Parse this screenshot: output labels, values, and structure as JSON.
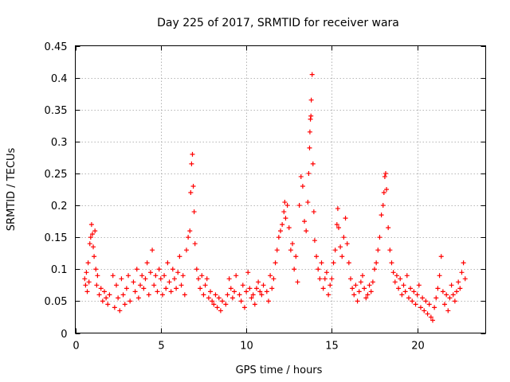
{
  "chart_data": {
    "type": "scatter",
    "title": "Day 225 of 2017, SRMTID for receiver wara",
    "xlabel": "GPS time / hours",
    "ylabel": "SRMTID / TECUs",
    "xlim": [
      0,
      24
    ],
    "ylim": [
      0,
      0.45
    ],
    "xticks": [
      0,
      5,
      10,
      15,
      20
    ],
    "yticks": [
      0,
      0.05,
      0.1,
      0.15,
      0.2,
      0.25,
      0.3,
      0.35,
      0.4,
      0.45
    ],
    "ytick_labels": [
      "0",
      "0.05",
      "0.1",
      "0.15",
      "0.2",
      "0.25",
      "0.3",
      "0.35",
      "0.4",
      "0.45"
    ],
    "grid": true,
    "marker": "+",
    "color": "#ff0000",
    "series": [
      {
        "name": "SRMTID",
        "points": [
          [
            0.55,
            0.085
          ],
          [
            0.6,
            0.075
          ],
          [
            0.65,
            0.095
          ],
          [
            0.7,
            0.065
          ],
          [
            0.75,
            0.11
          ],
          [
            0.8,
            0.08
          ],
          [
            0.85,
            0.14
          ],
          [
            0.9,
            0.15
          ],
          [
            0.95,
            0.17
          ],
          [
            1.0,
            0.155
          ],
          [
            1.05,
            0.135
          ],
          [
            1.1,
            0.12
          ],
          [
            1.15,
            0.16
          ],
          [
            1.2,
            0.1
          ],
          [
            1.25,
            0.075
          ],
          [
            1.3,
            0.09
          ],
          [
            1.4,
            0.06
          ],
          [
            1.5,
            0.07
          ],
          [
            1.6,
            0.05
          ],
          [
            1.7,
            0.065
          ],
          [
            1.8,
            0.055
          ],
          [
            1.9,
            0.045
          ],
          [
            2.0,
            0.06
          ],
          [
            2.2,
            0.09
          ],
          [
            2.3,
            0.04
          ],
          [
            2.4,
            0.075
          ],
          [
            2.5,
            0.055
          ],
          [
            2.6,
            0.035
          ],
          [
            2.7,
            0.085
          ],
          [
            2.8,
            0.06
          ],
          [
            2.9,
            0.045
          ],
          [
            3.0,
            0.07
          ],
          [
            3.1,
            0.09
          ],
          [
            3.2,
            0.05
          ],
          [
            3.4,
            0.08
          ],
          [
            3.5,
            0.065
          ],
          [
            3.6,
            0.1
          ],
          [
            3.7,
            0.055
          ],
          [
            3.8,
            0.075
          ],
          [
            3.9,
            0.09
          ],
          [
            4.0,
            0.07
          ],
          [
            4.1,
            0.085
          ],
          [
            4.2,
            0.11
          ],
          [
            4.3,
            0.06
          ],
          [
            4.4,
            0.095
          ],
          [
            4.5,
            0.13
          ],
          [
            4.6,
            0.075
          ],
          [
            4.7,
            0.09
          ],
          [
            4.8,
            0.065
          ],
          [
            4.9,
            0.1
          ],
          [
            5.0,
            0.085
          ],
          [
            5.1,
            0.06
          ],
          [
            5.2,
            0.09
          ],
          [
            5.3,
            0.07
          ],
          [
            5.4,
            0.11
          ],
          [
            5.5,
            0.08
          ],
          [
            5.6,
            0.065
          ],
          [
            5.7,
            0.1
          ],
          [
            5.8,
            0.085
          ],
          [
            5.9,
            0.07
          ],
          [
            6.0,
            0.095
          ],
          [
            6.1,
            0.12
          ],
          [
            6.2,
            0.075
          ],
          [
            6.3,
            0.09
          ],
          [
            6.4,
            0.06
          ],
          [
            6.5,
            0.13
          ],
          [
            6.6,
            0.15
          ],
          [
            6.7,
            0.16
          ],
          [
            6.75,
            0.22
          ],
          [
            6.8,
            0.265
          ],
          [
            6.85,
            0.28
          ],
          [
            6.9,
            0.23
          ],
          [
            6.95,
            0.19
          ],
          [
            7.0,
            0.14
          ],
          [
            7.1,
            0.1
          ],
          [
            7.2,
            0.085
          ],
          [
            7.3,
            0.07
          ],
          [
            7.4,
            0.09
          ],
          [
            7.5,
            0.06
          ],
          [
            7.6,
            0.075
          ],
          [
            7.7,
            0.085
          ],
          [
            7.8,
            0.055
          ],
          [
            7.9,
            0.065
          ],
          [
            8.0,
            0.05
          ],
          [
            8.1,
            0.045
          ],
          [
            8.2,
            0.06
          ],
          [
            8.3,
            0.04
          ],
          [
            8.4,
            0.055
          ],
          [
            8.5,
            0.035
          ],
          [
            8.6,
            0.05
          ],
          [
            8.8,
            0.045
          ],
          [
            8.9,
            0.06
          ],
          [
            9.0,
            0.085
          ],
          [
            9.1,
            0.07
          ],
          [
            9.2,
            0.055
          ],
          [
            9.3,
            0.065
          ],
          [
            9.4,
            0.09
          ],
          [
            9.6,
            0.06
          ],
          [
            9.7,
            0.05
          ],
          [
            9.8,
            0.075
          ],
          [
            9.9,
            0.04
          ],
          [
            10.0,
            0.065
          ],
          [
            10.1,
            0.095
          ],
          [
            10.2,
            0.07
          ],
          [
            10.3,
            0.055
          ],
          [
            10.4,
            0.06
          ],
          [
            10.5,
            0.045
          ],
          [
            10.6,
            0.07
          ],
          [
            10.7,
            0.08
          ],
          [
            10.8,
            0.065
          ],
          [
            10.9,
            0.06
          ],
          [
            11.0,
            0.075
          ],
          [
            11.2,
            0.065
          ],
          [
            11.3,
            0.05
          ],
          [
            11.4,
            0.09
          ],
          [
            11.5,
            0.07
          ],
          [
            11.6,
            0.085
          ],
          [
            11.7,
            0.11
          ],
          [
            11.8,
            0.13
          ],
          [
            11.9,
            0.15
          ],
          [
            12.0,
            0.16
          ],
          [
            12.1,
            0.17
          ],
          [
            12.2,
            0.19
          ],
          [
            12.25,
            0.205
          ],
          [
            12.3,
            0.18
          ],
          [
            12.4,
            0.2
          ],
          [
            12.5,
            0.165
          ],
          [
            12.6,
            0.13
          ],
          [
            12.7,
            0.14
          ],
          [
            12.8,
            0.1
          ],
          [
            12.9,
            0.12
          ],
          [
            13.0,
            0.08
          ],
          [
            13.1,
            0.2
          ],
          [
            13.2,
            0.245
          ],
          [
            13.3,
            0.23
          ],
          [
            13.4,
            0.175
          ],
          [
            13.5,
            0.16
          ],
          [
            13.6,
            0.205
          ],
          [
            13.65,
            0.25
          ],
          [
            13.7,
            0.29
          ],
          [
            13.72,
            0.315
          ],
          [
            13.75,
            0.335
          ],
          [
            13.78,
            0.34
          ],
          [
            13.8,
            0.365
          ],
          [
            13.85,
            0.405
          ],
          [
            13.9,
            0.265
          ],
          [
            13.95,
            0.19
          ],
          [
            14.0,
            0.145
          ],
          [
            14.1,
            0.12
          ],
          [
            14.2,
            0.1
          ],
          [
            14.3,
            0.085
          ],
          [
            14.4,
            0.11
          ],
          [
            14.5,
            0.07
          ],
          [
            14.6,
            0.085
          ],
          [
            14.7,
            0.095
          ],
          [
            14.8,
            0.06
          ],
          [
            14.9,
            0.075
          ],
          [
            15.0,
            0.085
          ],
          [
            15.1,
            0.11
          ],
          [
            15.2,
            0.13
          ],
          [
            15.3,
            0.17
          ],
          [
            15.35,
            0.195
          ],
          [
            15.4,
            0.165
          ],
          [
            15.5,
            0.135
          ],
          [
            15.6,
            0.12
          ],
          [
            15.7,
            0.15
          ],
          [
            15.8,
            0.18
          ],
          [
            15.9,
            0.14
          ],
          [
            16.0,
            0.11
          ],
          [
            16.1,
            0.085
          ],
          [
            16.2,
            0.07
          ],
          [
            16.3,
            0.06
          ],
          [
            16.4,
            0.075
          ],
          [
            16.5,
            0.05
          ],
          [
            16.6,
            0.065
          ],
          [
            16.7,
            0.08
          ],
          [
            16.8,
            0.09
          ],
          [
            16.9,
            0.07
          ],
          [
            17.0,
            0.055
          ],
          [
            17.1,
            0.06
          ],
          [
            17.2,
            0.075
          ],
          [
            17.3,
            0.065
          ],
          [
            17.4,
            0.08
          ],
          [
            17.5,
            0.1
          ],
          [
            17.6,
            0.11
          ],
          [
            17.7,
            0.13
          ],
          [
            17.8,
            0.15
          ],
          [
            17.9,
            0.185
          ],
          [
            18.0,
            0.2
          ],
          [
            18.05,
            0.22
          ],
          [
            18.1,
            0.245
          ],
          [
            18.15,
            0.25
          ],
          [
            18.2,
            0.225
          ],
          [
            18.3,
            0.165
          ],
          [
            18.4,
            0.13
          ],
          [
            18.5,
            0.11
          ],
          [
            18.6,
            0.095
          ],
          [
            18.7,
            0.08
          ],
          [
            18.8,
            0.09
          ],
          [
            18.9,
            0.07
          ],
          [
            19.0,
            0.085
          ],
          [
            19.1,
            0.06
          ],
          [
            19.2,
            0.075
          ],
          [
            19.3,
            0.065
          ],
          [
            19.4,
            0.09
          ],
          [
            19.5,
            0.055
          ],
          [
            19.6,
            0.07
          ],
          [
            19.7,
            0.05
          ],
          [
            19.8,
            0.065
          ],
          [
            19.9,
            0.045
          ],
          [
            20.0,
            0.06
          ],
          [
            20.1,
            0.075
          ],
          [
            20.2,
            0.04
          ],
          [
            20.3,
            0.055
          ],
          [
            20.4,
            0.035
          ],
          [
            20.5,
            0.05
          ],
          [
            20.6,
            0.03
          ],
          [
            20.7,
            0.045
          ],
          [
            20.8,
            0.025
          ],
          [
            20.9,
            0.02
          ],
          [
            21.0,
            0.04
          ],
          [
            21.1,
            0.055
          ],
          [
            21.2,
            0.07
          ],
          [
            21.3,
            0.09
          ],
          [
            21.4,
            0.12
          ],
          [
            21.5,
            0.065
          ],
          [
            21.6,
            0.045
          ],
          [
            21.7,
            0.06
          ],
          [
            21.8,
            0.035
          ],
          [
            21.9,
            0.055
          ],
          [
            22.0,
            0.075
          ],
          [
            22.1,
            0.06
          ],
          [
            22.2,
            0.05
          ],
          [
            22.3,
            0.065
          ],
          [
            22.4,
            0.08
          ],
          [
            22.5,
            0.07
          ],
          [
            22.6,
            0.095
          ],
          [
            22.7,
            0.11
          ],
          [
            22.8,
            0.085
          ]
        ]
      }
    ]
  }
}
